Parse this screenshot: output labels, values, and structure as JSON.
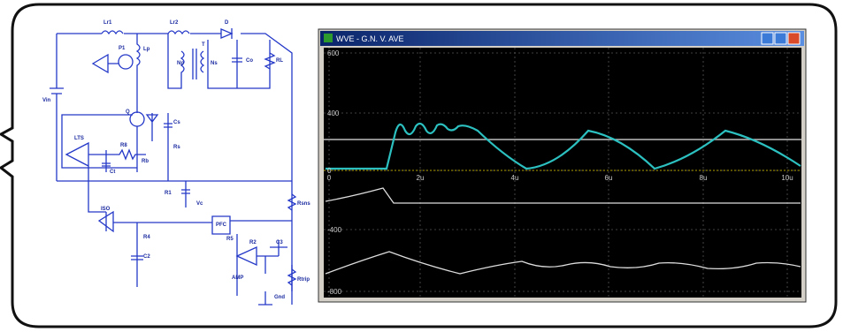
{
  "window": {
    "title": "WVE - G.N. V. AVE"
  },
  "plot": {
    "y_labels": [
      "600",
      "400",
      "0",
      "-400",
      "-800"
    ],
    "x_labels": [
      "0",
      "2u",
      "4u",
      "6u",
      "8u",
      "10u"
    ]
  },
  "schematic": {
    "labels": [
      "Lr1",
      "Lr2",
      "D",
      "P1",
      "Lp",
      "T",
      "Np",
      "Ns",
      "Co",
      "RL",
      "Vin",
      "LTS",
      "R8",
      "Rb",
      "Cs",
      "Rs",
      "Q",
      "Ct",
      "R1",
      "Vc",
      "ISO",
      "R4",
      "C2",
      "PFC",
      "R5",
      "R2",
      "C3",
      "AMP",
      "Rsns",
      "Rtrip",
      "Gnd"
    ]
  }
}
